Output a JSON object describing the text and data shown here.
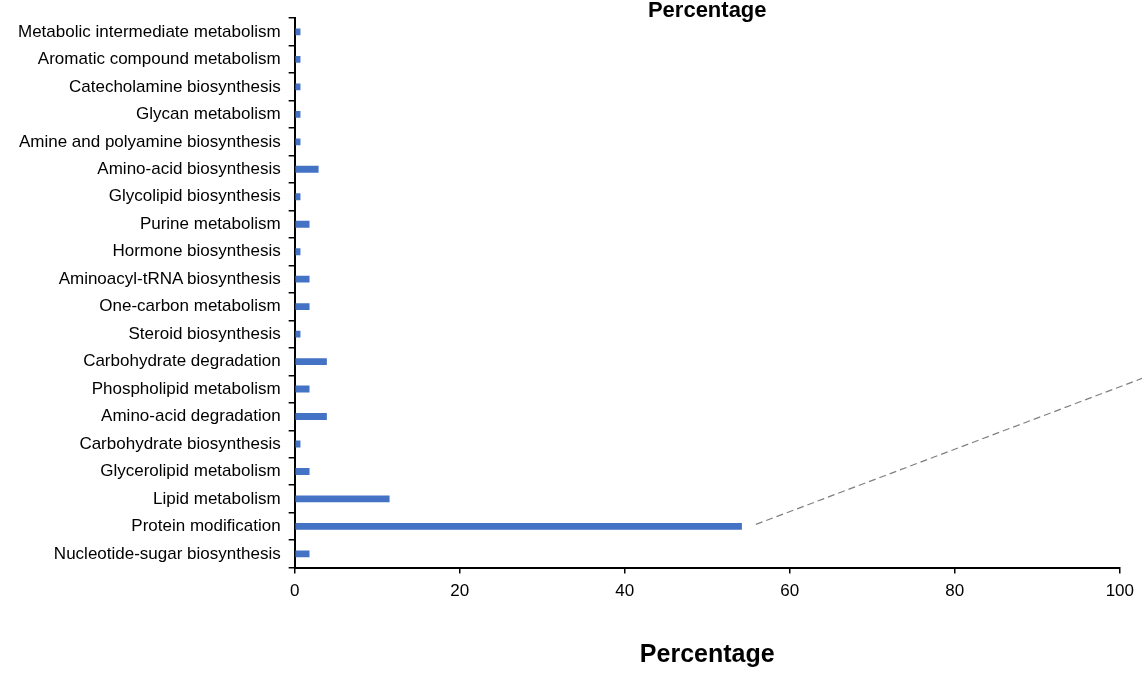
{
  "chart_data": {
    "type": "bar",
    "orientation": "horizontal",
    "title": "Percentage",
    "xlabel": "Percentage",
    "categories": [
      "Metabolic intermediate metabolism",
      "Aromatic compound metabolism",
      "Catecholamine biosynthesis",
      "Glycan metabolism",
      "Amine and polyamine biosynthesis",
      "Amino-acid biosynthesis",
      "Glycolipid biosynthesis",
      "Purine metabolism",
      "Hormone biosynthesis",
      "Aminoacyl-tRNA biosynthesis",
      "One-carbon metabolism",
      "Steroid biosynthesis",
      "Carbohydrate degradation",
      "Phospholipid metabolism",
      "Amino-acid degradation",
      "Carbohydrate biosynthesis",
      "Glycerolipid metabolism",
      "Lipid metabolism",
      "Protein modification",
      "Nucleotide-sugar biosynthesis"
    ],
    "values": [
      0.7,
      0.7,
      0.7,
      0.7,
      0.7,
      2.9,
      0.7,
      1.8,
      0.7,
      1.8,
      1.8,
      0.7,
      3.9,
      1.8,
      3.9,
      0.7,
      1.8,
      11.5,
      54.2,
      1.8
    ],
    "color": "#4472c4",
    "xlim": [
      0,
      100
    ],
    "xticks": [
      0,
      20,
      40,
      60,
      80,
      100
    ],
    "grid": false,
    "legend": false
  }
}
